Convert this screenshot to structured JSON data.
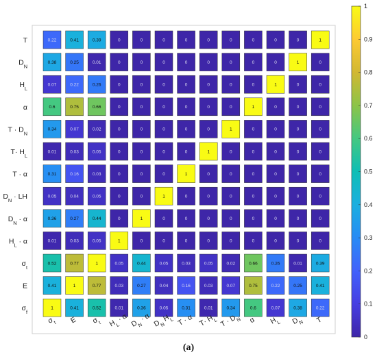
{
  "caption": "(a)",
  "chart_data": {
    "type": "heatmap",
    "row_labels": [
      "T",
      "D_N",
      "H_L",
      "α",
      "T · D_N",
      "T· H_L",
      "T · α",
      "D_N · LH",
      "D_N · α",
      "H_L · α",
      "σ_t",
      "E",
      "σ_f"
    ],
    "col_labels": [
      "σ_t",
      "E",
      "σ_t",
      "H_L · α",
      "D_N · α",
      "D_N H_L",
      "T · α",
      "T· H_L",
      "T · D_N",
      "α",
      "H_L",
      "D_N",
      "T"
    ],
    "values": [
      [
        0.22,
        0.41,
        0.39,
        0,
        0,
        0,
        0,
        0,
        0,
        0,
        0,
        0,
        1
      ],
      [
        0.38,
        0.25,
        0.01,
        0,
        0,
        0,
        0,
        0,
        0,
        0,
        0,
        1,
        0
      ],
      [
        0.07,
        0.22,
        0.26,
        0,
        0,
        0,
        0,
        0,
        0,
        0,
        1,
        0,
        0
      ],
      [
        0.6,
        0.75,
        0.66,
        0,
        0,
        0,
        0,
        0,
        0,
        1,
        0,
        0,
        0
      ],
      [
        0.34,
        0.07,
        0.02,
        0,
        0,
        0,
        0,
        0,
        1,
        0,
        0,
        0,
        0
      ],
      [
        0.01,
        0.03,
        0.05,
        0,
        0,
        0,
        0,
        1,
        0,
        0,
        0,
        0,
        0
      ],
      [
        0.31,
        0.16,
        0.03,
        0,
        0,
        0,
        1,
        0,
        0,
        0,
        0,
        0,
        0
      ],
      [
        0.05,
        0.04,
        0.05,
        0,
        0,
        1,
        0,
        0,
        0,
        0,
        0,
        0,
        0
      ],
      [
        0.36,
        0.27,
        0.44,
        0,
        1,
        0,
        0,
        0,
        0,
        0,
        0,
        0,
        0
      ],
      [
        0.01,
        0.03,
        0.05,
        1,
        0,
        0,
        0,
        0,
        0,
        0,
        0,
        0,
        0
      ],
      [
        0.52,
        0.77,
        1,
        0.05,
        0.44,
        0.05,
        0.03,
        0.05,
        0.02,
        0.66,
        0.26,
        0.01,
        0.39
      ],
      [
        0.41,
        1,
        0.77,
        0.03,
        0.27,
        0.04,
        0.16,
        0.03,
        0.07,
        0.75,
        0.22,
        0.25,
        0.41
      ],
      [
        1,
        0.41,
        0.52,
        0.01,
        0.36,
        0.05,
        0.31,
        0.01,
        0.34,
        0.6,
        0.07,
        0.38,
        0.22
      ]
    ],
    "colorbar": {
      "colormap": "parula",
      "range": [
        0,
        1
      ],
      "ticks": [
        0,
        0.1,
        0.2,
        0.3,
        0.4,
        0.5,
        0.6,
        0.7,
        0.8,
        0.9,
        1
      ]
    },
    "grid": false,
    "legend": "colorbar-right"
  }
}
